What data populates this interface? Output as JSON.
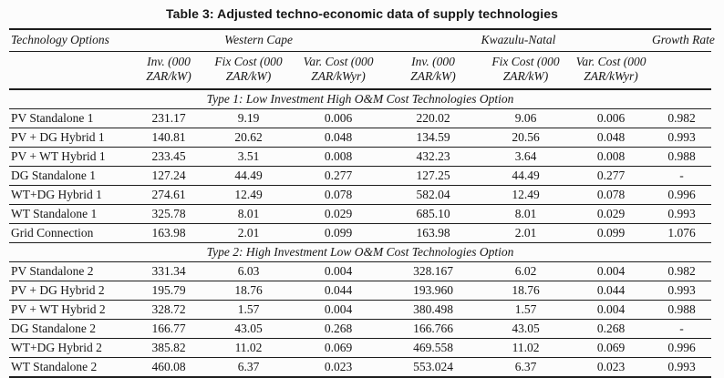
{
  "title": "Table 3: Adjusted techno-economic data of supply technologies",
  "columns": {
    "technology": "Technology Options",
    "region1": "Western Cape",
    "region2": "Kwazulu-Natal",
    "growth": "Growth Rate",
    "sub": {
      "inv_line1": "Inv. (000",
      "inv_line2": "ZAR/kW)",
      "fix_line1": "Fix Cost (000",
      "fix_line2": "ZAR/kW)",
      "var_line1": "Var. Cost (000",
      "var_line2": "ZAR/kWyr)"
    }
  },
  "sections": [
    {
      "header": "Type 1: Low Investment High O&M Cost Technologies Option",
      "rows": [
        {
          "cells": [
            "PV Standalone 1",
            "231.17",
            "9.19",
            "0.006",
            "220.02",
            "9.06",
            "0.006",
            "0.982"
          ]
        },
        {
          "cells": [
            "PV + DG Hybrid 1",
            "140.81",
            "20.62",
            "0.048",
            "134.59",
            "20.56",
            "0.048",
            "0.993"
          ]
        },
        {
          "cells": [
            "PV + WT Hybrid 1",
            "233.45",
            "3.51",
            "0.008",
            "432.23",
            "3.64",
            "0.008",
            "0.988"
          ]
        },
        {
          "cells": [
            "DG Standalone 1",
            "127.24",
            "44.49",
            "0.277",
            "127.25",
            "44.49",
            "0.277",
            "-"
          ]
        },
        {
          "cells": [
            "WT+DG Hybrid 1",
            "274.61",
            "12.49",
            "0.078",
            "582.04",
            "12.49",
            "0.078",
            "0.996"
          ]
        },
        {
          "cells": [
            "WT Standalone 1",
            "325.78",
            "8.01",
            "0.029",
            "685.10",
            "8.01",
            "0.029",
            "0.993"
          ]
        },
        {
          "cells": [
            "Grid Connection",
            "163.98",
            "2.01",
            "0.099",
            "163.98",
            "2.01",
            "0.099",
            "1.076"
          ]
        }
      ]
    },
    {
      "header": "Type 2: High Investment Low O&M Cost Technologies Option",
      "rows": [
        {
          "cells": [
            "PV Standalone 2",
            "331.34",
            "6.03",
            "0.004",
            "328.167",
            "6.02",
            "0.004",
            "0.982"
          ]
        },
        {
          "cells": [
            "PV + DG Hybrid 2",
            "195.79",
            "18.76",
            "0.044",
            "193.960",
            "18.76",
            "0.044",
            "0.993"
          ]
        },
        {
          "cells": [
            "PV + WT Hybrid 2",
            "328.72",
            "1.57",
            "0.004",
            "380.498",
            "1.57",
            "0.004",
            "0.988"
          ]
        },
        {
          "cells": [
            "DG Standalone 2",
            "166.77",
            "43.05",
            "0.268",
            "166.766",
            "43.05",
            "0.268",
            "-"
          ]
        },
        {
          "cells": [
            "WT+DG Hybrid 2",
            "385.82",
            "11.02",
            "0.069",
            "469.558",
            "11.02",
            "0.069",
            "0.996"
          ]
        },
        {
          "cells": [
            "WT Standalone 2",
            "460.08",
            "6.37",
            "0.023",
            "553.024",
            "6.37",
            "0.023",
            "0.993"
          ]
        }
      ]
    }
  ]
}
